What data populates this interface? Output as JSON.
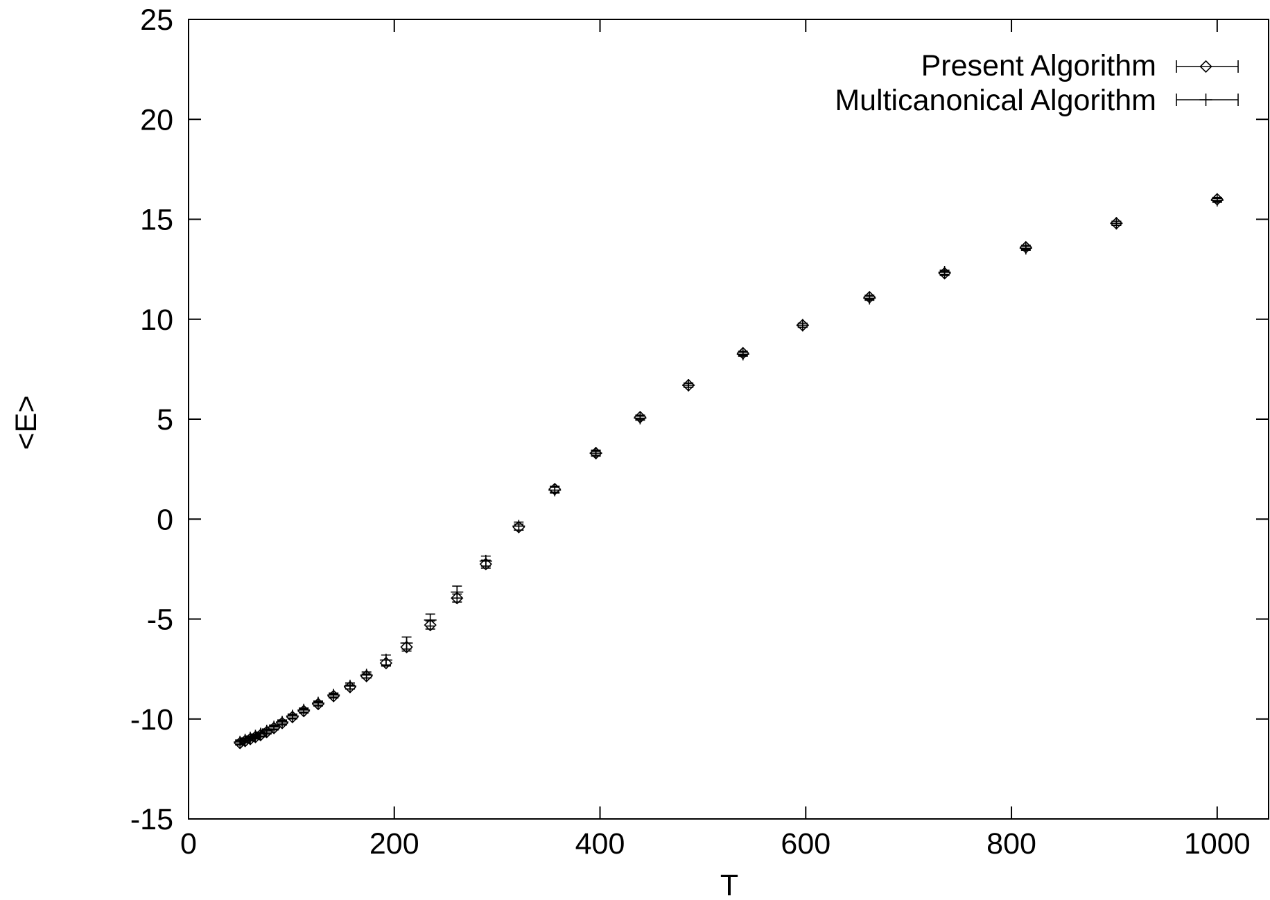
{
  "chart_data": {
    "type": "scatter",
    "title": "",
    "xlabel": "T",
    "ylabel": "<E>",
    "xlim": [
      0,
      1050
    ],
    "ylim": [
      -15,
      25
    ],
    "xticks": [
      0,
      200,
      400,
      600,
      800,
      1000
    ],
    "yticks": [
      -15,
      -10,
      -5,
      0,
      5,
      10,
      15,
      20,
      25
    ],
    "xtick_labels": [
      "0",
      "200",
      "400",
      "600",
      "800",
      "1000"
    ],
    "ytick_labels": [
      "-15",
      "-10",
      "-5",
      "0",
      "5",
      "10",
      "15",
      "20",
      "25"
    ],
    "grid": false,
    "legend_position": "top-right",
    "error_bars": true,
    "series": [
      {
        "name": "Present Algorithm",
        "marker": "diamond",
        "x": [
          50,
          55,
          60,
          65,
          70,
          76,
          83,
          91,
          101,
          112,
          126,
          141,
          157,
          173,
          192,
          212,
          235,
          261,
          289,
          321,
          356,
          396,
          439,
          486,
          539,
          597,
          662,
          735,
          814,
          902,
          1000
        ],
        "y": [
          -11.2,
          -11.1,
          -11.0,
          -10.9,
          -10.8,
          -10.65,
          -10.45,
          -10.2,
          -9.9,
          -9.6,
          -9.25,
          -8.85,
          -8.4,
          -7.85,
          -7.2,
          -6.4,
          -5.3,
          -3.95,
          -2.25,
          -0.4,
          1.5,
          3.3,
          5.1,
          6.7,
          8.3,
          9.7,
          11.1,
          12.3,
          13.6,
          14.8,
          16.0
        ],
        "yerr": [
          0.1,
          0.1,
          0.1,
          0.1,
          0.1,
          0.1,
          0.1,
          0.1,
          0.1,
          0.1,
          0.1,
          0.1,
          0.1,
          0.1,
          0.15,
          0.2,
          0.2,
          0.2,
          0.2,
          0.15,
          0.15,
          0.1,
          0.1,
          0.1,
          0.1,
          0.1,
          0.1,
          0.1,
          0.1,
          0.1,
          0.1
        ]
      },
      {
        "name": "Multicanonical Algorithm",
        "marker": "plus",
        "x": [
          50,
          55,
          60,
          65,
          70,
          76,
          83,
          91,
          101,
          112,
          126,
          141,
          157,
          173,
          192,
          212,
          235,
          261,
          289,
          321,
          356,
          396,
          439,
          486,
          539,
          597,
          662,
          735,
          814,
          902,
          1000
        ],
        "y": [
          -11.15,
          -11.05,
          -10.95,
          -10.85,
          -10.75,
          -10.6,
          -10.4,
          -10.15,
          -9.85,
          -9.55,
          -9.2,
          -8.8,
          -8.35,
          -7.8,
          -7.05,
          -6.2,
          -5.05,
          -3.65,
          -2.1,
          -0.35,
          1.45,
          3.3,
          5.05,
          6.7,
          8.25,
          9.7,
          11.05,
          12.35,
          13.55,
          14.8,
          15.95
        ],
        "yerr": [
          0.1,
          0.1,
          0.1,
          0.1,
          0.1,
          0.1,
          0.1,
          0.1,
          0.1,
          0.1,
          0.1,
          0.1,
          0.15,
          0.15,
          0.25,
          0.3,
          0.3,
          0.3,
          0.25,
          0.2,
          0.15,
          0.15,
          0.1,
          0.1,
          0.1,
          0.1,
          0.1,
          0.1,
          0.1,
          0.1,
          0.1
        ]
      }
    ]
  }
}
